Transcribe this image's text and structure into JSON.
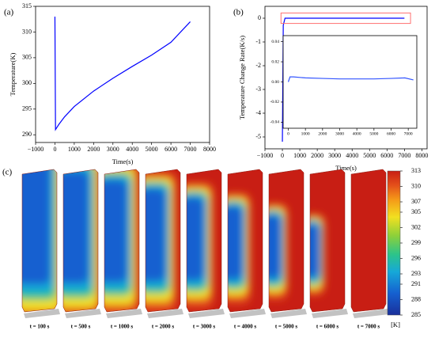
{
  "chart_data": [
    {
      "type": "line",
      "label": "(a)",
      "xlabel": "Time(s)",
      "ylabel": "Temperature(K)",
      "color": "#0000ff",
      "x": [
        0,
        30,
        200,
        500,
        1000,
        2000,
        3000,
        4000,
        5000,
        6000,
        7000
      ],
      "values": [
        313,
        291,
        292,
        293.5,
        295.5,
        298.5,
        301,
        303.3,
        305.5,
        308,
        312
      ],
      "xlim": [
        -1000,
        8000
      ],
      "xticks": [
        {
          "value": -1000,
          "label": "−1000"
        },
        0,
        1000,
        2000,
        3000,
        4000,
        5000,
        6000,
        7000,
        8000
      ],
      "ylim": [
        288.5,
        315
      ],
      "yticks": [
        290,
        295,
        300,
        305,
        310,
        315
      ]
    },
    {
      "type": "line",
      "label": "(b)",
      "xlabel": "Time(s)",
      "ylabel": "Temperature Change Rate(K/s)",
      "color": "#0000ff",
      "x": [
        0,
        50,
        150,
        7000
      ],
      "values": [
        -5.2,
        -0.3,
        0,
        0
      ],
      "xlim": [
        -1000,
        8300
      ],
      "xticks": [
        {
          "value": -1000,
          "label": "−1000"
        },
        0,
        1000,
        2000,
        3000,
        4000,
        5000,
        6000,
        7000,
        8000
      ],
      "ylim": [
        -5.5,
        0.5
      ],
      "yticks": [
        0,
        -1,
        -2,
        -3,
        -4,
        -5
      ]
    },
    {
      "type": "line",
      "color": "#3355ff",
      "x": [
        0,
        100,
        300,
        1000,
        2000,
        3000,
        4000,
        5000,
        6000,
        6800,
        7300
      ],
      "values": [
        0,
        0.005,
        0.005,
        0.004,
        0.0035,
        0.003,
        0.003,
        0.003,
        0.0035,
        0.004,
        0.002
      ],
      "xlim": [
        -300,
        7500
      ],
      "xticks": [
        0,
        1000,
        2000,
        3000,
        4000,
        5000,
        6000,
        7000
      ],
      "ylim": [
        -0.046,
        0.046
      ],
      "yticks": [
        -0.04,
        -0.02,
        {
          "value": 0,
          "label": "0.00"
        },
        0.02,
        0.04
      ]
    },
    {
      "type": "colorbar",
      "label": "(c)",
      "unit": "[K]",
      "snapshots": [
        "t = 100 s",
        "t = 500 s",
        "t = 1000 s",
        "t = 2000 s",
        "t = 3000 s",
        "t = 4000 s",
        "t = 5000 s",
        "t = 6000 s",
        "t = 7000 s"
      ],
      "ylim": [
        285,
        313
      ],
      "yticks": [
        285,
        288,
        291,
        293,
        296,
        299,
        302,
        305,
        307,
        310,
        313
      ]
    }
  ]
}
